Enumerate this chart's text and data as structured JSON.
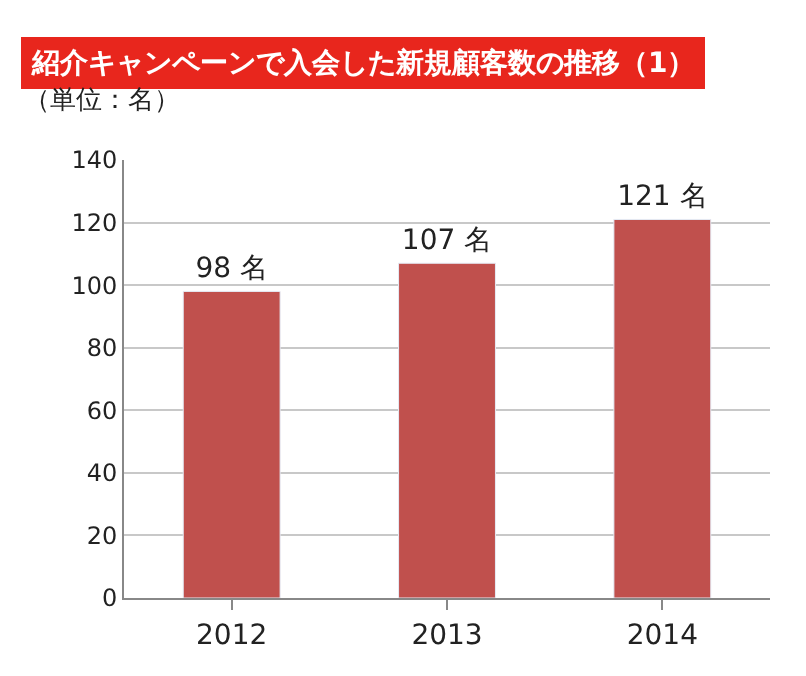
{
  "chart_data": {
    "type": "bar",
    "title": "紹介キャンペーンで入会した新規顧客数の推移（1）",
    "ylabel": "（単位：名）",
    "categories": [
      "2012",
      "2013",
      "2014"
    ],
    "values": [
      98,
      107,
      121
    ],
    "value_labels": [
      "98 名",
      "107 名",
      "121 名"
    ],
    "color": "#c0504d",
    "ylim": [
      0,
      140
    ],
    "yticks": [
      0,
      20,
      40,
      60,
      80,
      100,
      120,
      140
    ],
    "grid": "y",
    "legend": false
  }
}
